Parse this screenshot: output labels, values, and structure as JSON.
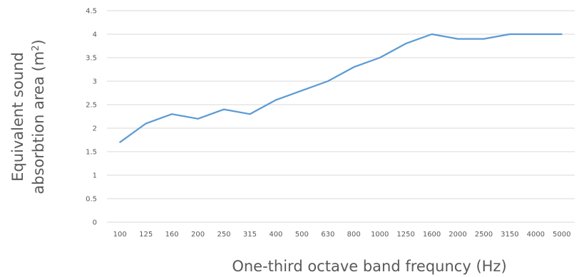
{
  "chart_data": {
    "type": "line",
    "title": "",
    "xlabel": "One-third octave band frequncy (Hz)",
    "ylabel_line1": "Equivalent sound",
    "ylabel_line2": "absorbtion area (m",
    "ylabel_sup": "2",
    "ylabel_close": ")",
    "categories": [
      "100",
      "125",
      "160",
      "200",
      "250",
      "315",
      "400",
      "500",
      "630",
      "800",
      "1000",
      "1250",
      "1600",
      "2000",
      "2500",
      "3150",
      "4000",
      "5000"
    ],
    "series": [
      {
        "values": [
          1.7,
          2.1,
          2.3,
          2.2,
          2.4,
          2.3,
          2.6,
          2.8,
          3.0,
          3.3,
          3.5,
          3.8,
          4.0,
          3.9,
          3.9,
          4.0,
          4.0,
          4.0
        ]
      }
    ],
    "ylim": [
      0,
      4.5
    ],
    "yticks": [
      "0",
      "0.5",
      "1",
      "1.5",
      "2",
      "2.5",
      "3",
      "3.5",
      "4",
      "4.5"
    ],
    "grid": true,
    "legend": "none",
    "line_color": "#5b9bd5",
    "grid_color": "#d9d9d9"
  }
}
